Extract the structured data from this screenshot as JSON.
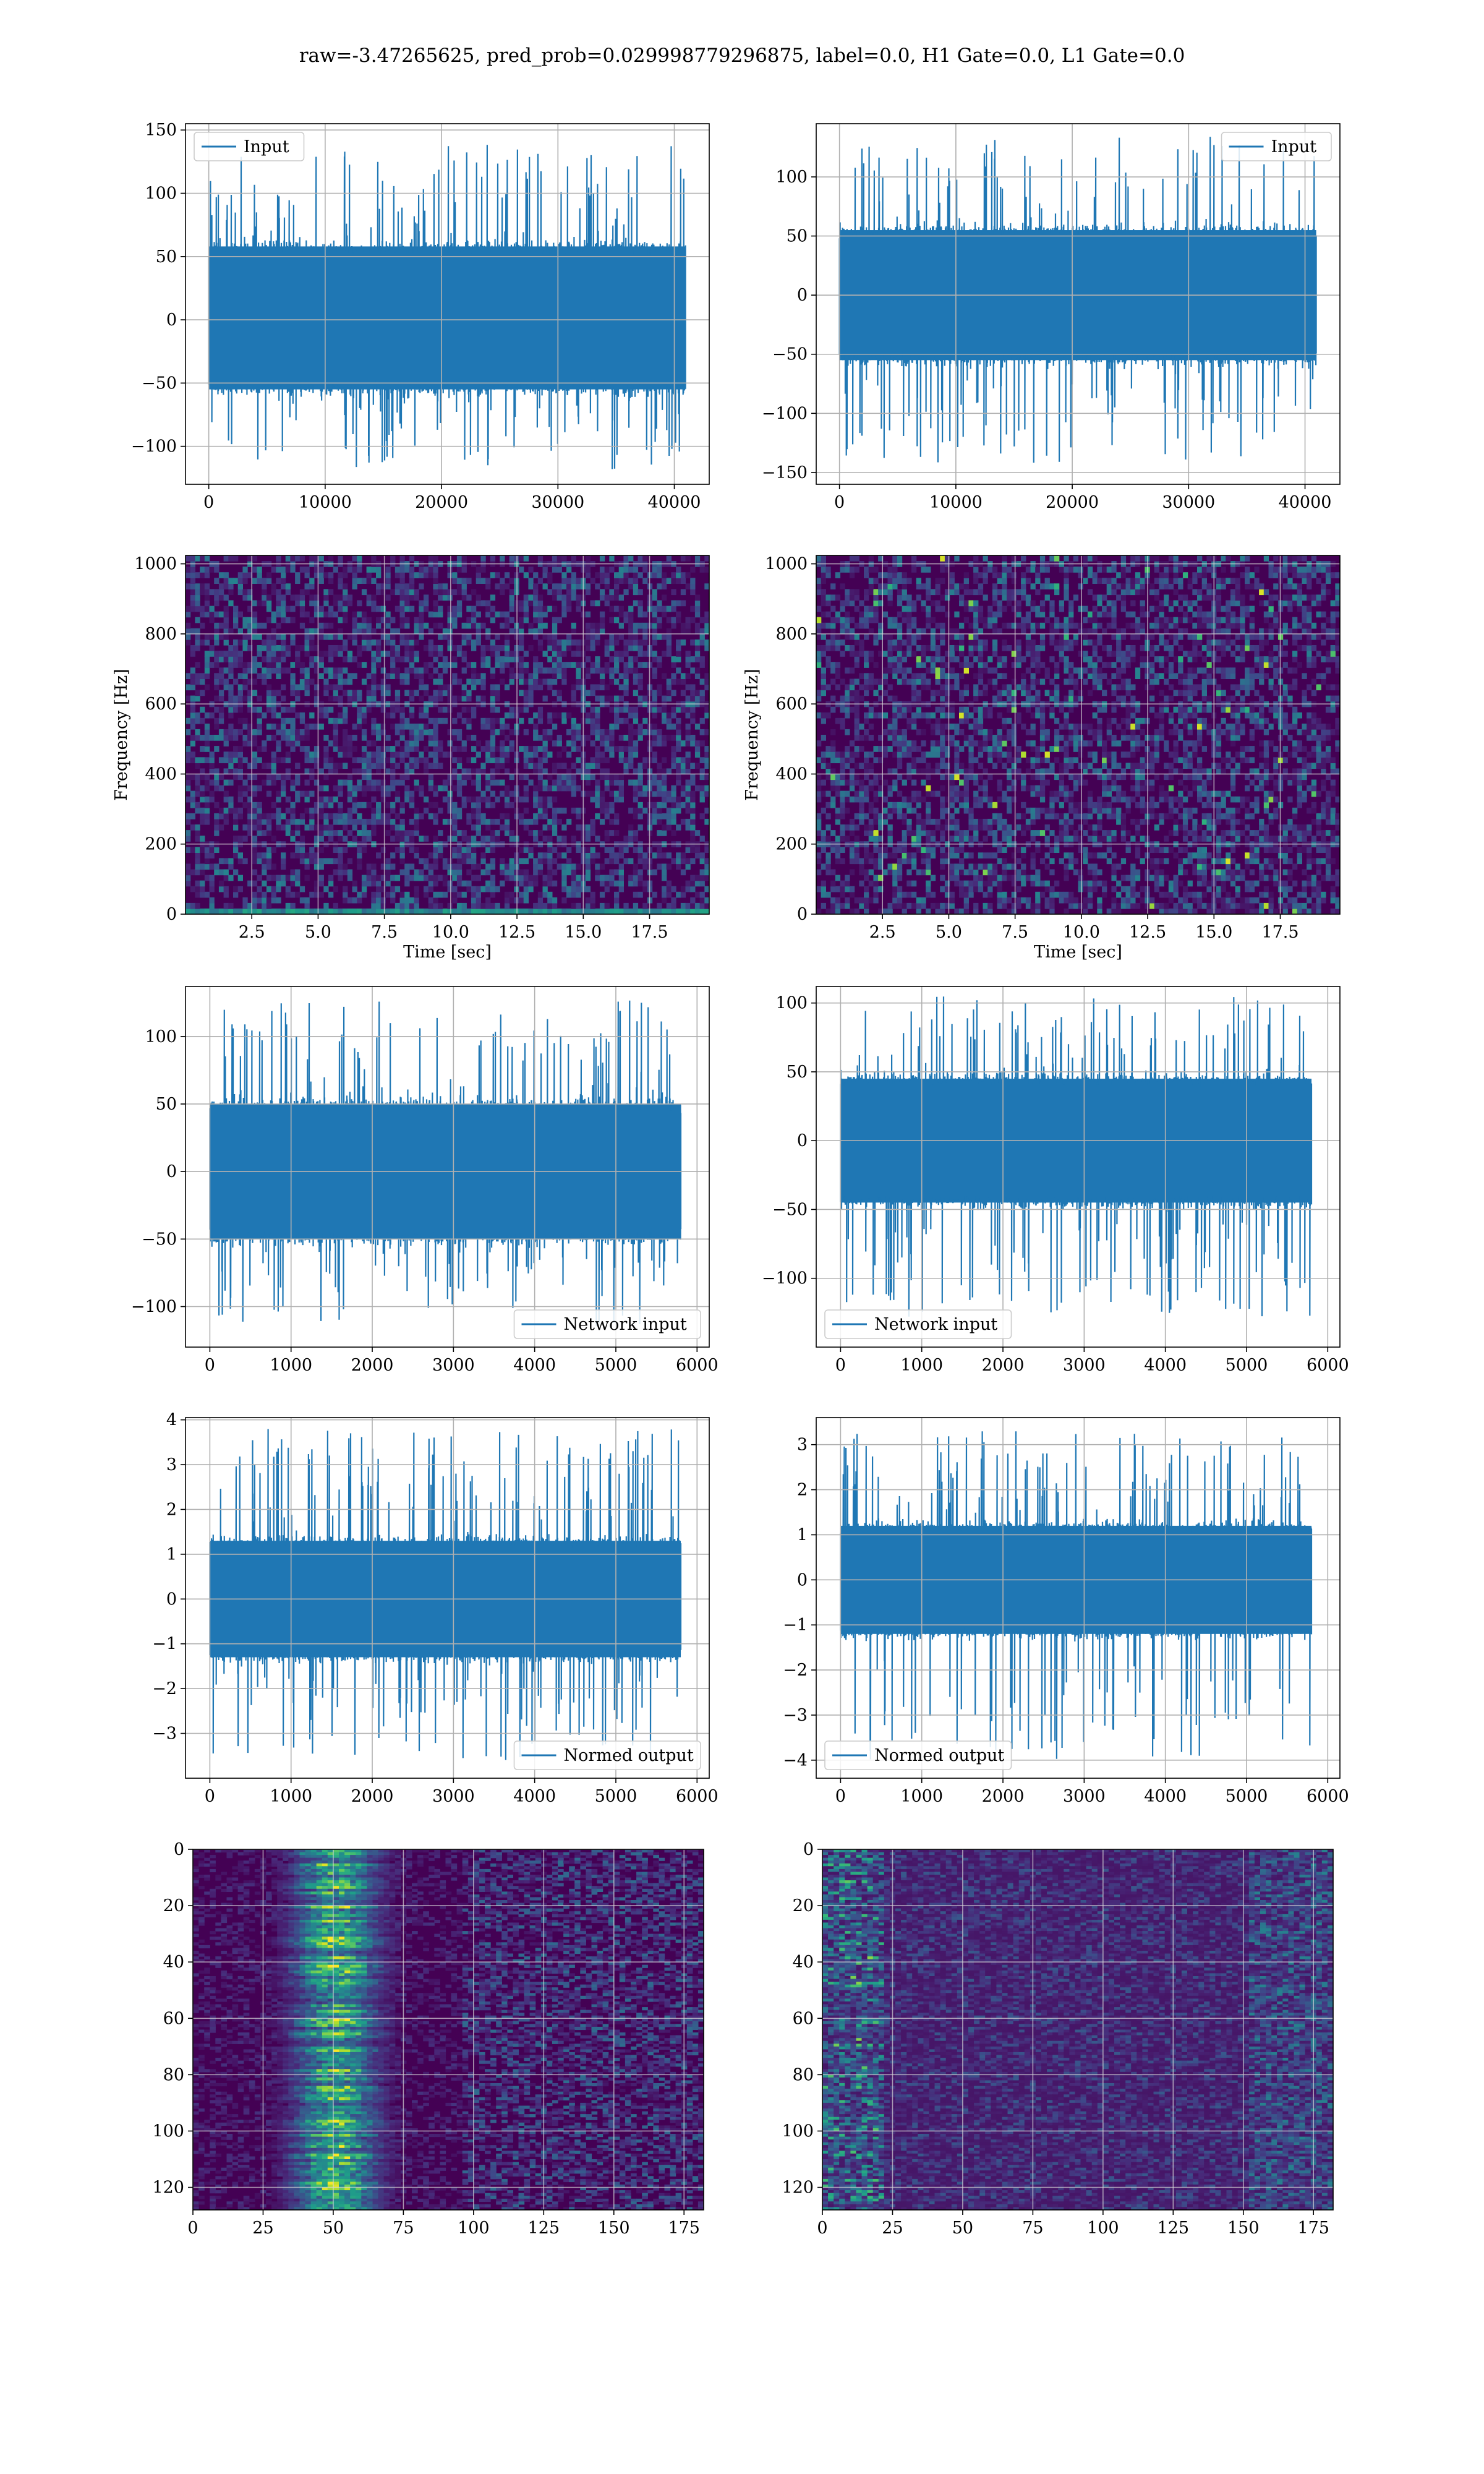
{
  "figure": {
    "suptitle": "raw=-3.47265625, pred_prob=0.029998779296875, label=0.0, H1 Gate=0.0, L1 Gate=0.0",
    "colors": {
      "series": "#1f77b4",
      "grid": "#b0b0b0",
      "viridis_dark": "#440154",
      "viridis_yellow": "#fde725"
    }
  },
  "chart_data": [
    {
      "id": "input_left",
      "type": "line",
      "series": [
        {
          "name": "Input",
          "color": "#1f77b4"
        }
      ],
      "xlim": [
        -2000,
        43000
      ],
      "ylim": [
        -130,
        155
      ],
      "xticks": [
        0,
        10000,
        20000,
        30000,
        40000
      ],
      "xtick_labels": [
        "0",
        "10000",
        "20000",
        "30000",
        "40000"
      ],
      "yticks": [
        -100,
        -50,
        0,
        50,
        100,
        150
      ],
      "ytick_labels": [
        "−100",
        "−50",
        "0",
        "50",
        "100",
        "150"
      ],
      "data_x_range": [
        0,
        40960
      ],
      "band": [
        -55,
        58
      ],
      "envelope": [
        -120,
        140
      ],
      "legend_loc": "upper left",
      "grid": true
    },
    {
      "id": "input_right",
      "type": "line",
      "series": [
        {
          "name": "Input",
          "color": "#1f77b4"
        }
      ],
      "xlim": [
        -2000,
        43000
      ],
      "ylim": [
        -160,
        145
      ],
      "xticks": [
        0,
        10000,
        20000,
        30000,
        40000
      ],
      "xtick_labels": [
        "0",
        "10000",
        "20000",
        "30000",
        "40000"
      ],
      "yticks": [
        -150,
        -100,
        -50,
        0,
        50,
        100
      ],
      "ytick_labels": [
        "−150",
        "−100",
        "−50",
        "0",
        "50",
        "100"
      ],
      "data_x_range": [
        0,
        40960
      ],
      "band": [
        -55,
        55
      ],
      "envelope": [
        -145,
        135
      ],
      "legend_loc": "upper right",
      "grid": true
    },
    {
      "id": "spec_left",
      "type": "heatmap",
      "colormap": "viridis",
      "xlim": [
        0,
        19.75
      ],
      "ylim": [
        0,
        1024
      ],
      "xticks": [
        2.5,
        5.0,
        7.5,
        10.0,
        12.5,
        15.0,
        17.5
      ],
      "xtick_labels": [
        "2.5",
        "5.0",
        "7.5",
        "10.0",
        "12.5",
        "15.0",
        "17.5"
      ],
      "yticks": [
        0,
        200,
        400,
        600,
        800,
        1000
      ],
      "ytick_labels": [
        "0",
        "200",
        "400",
        "600",
        "800",
        "1000"
      ],
      "xlabel": "Time [sec]",
      "ylabel": "Frequency [Hz]",
      "grid": true
    },
    {
      "id": "spec_right",
      "type": "heatmap",
      "colormap": "viridis",
      "xlim": [
        0,
        19.75
      ],
      "ylim": [
        0,
        1024
      ],
      "xticks": [
        2.5,
        5.0,
        7.5,
        10.0,
        12.5,
        15.0,
        17.5
      ],
      "xtick_labels": [
        "2.5",
        "5.0",
        "7.5",
        "10.0",
        "12.5",
        "15.0",
        "17.5"
      ],
      "yticks": [
        0,
        200,
        400,
        600,
        800,
        1000
      ],
      "ytick_labels": [
        "0",
        "200",
        "400",
        "600",
        "800",
        "1000"
      ],
      "xlabel": "Time [sec]",
      "ylabel": "Frequency [Hz]",
      "grid": true
    },
    {
      "id": "net_left",
      "type": "line",
      "series": [
        {
          "name": "Network input",
          "color": "#1f77b4"
        }
      ],
      "xlim": [
        -300,
        6150
      ],
      "ylim": [
        -130,
        137
      ],
      "xticks": [
        0,
        1000,
        2000,
        3000,
        4000,
        5000,
        6000
      ],
      "xtick_labels": [
        "0",
        "1000",
        "2000",
        "3000",
        "4000",
        "5000",
        "6000"
      ],
      "yticks": [
        -100,
        -50,
        0,
        50,
        100
      ],
      "ytick_labels": [
        "−100",
        "−50",
        "0",
        "50",
        "100"
      ],
      "data_x_range": [
        0,
        5800
      ],
      "band": [
        -50,
        50
      ],
      "envelope": [
        -115,
        127
      ],
      "legend_loc": "lower right",
      "grid": true
    },
    {
      "id": "net_right",
      "type": "line",
      "series": [
        {
          "name": "Network input",
          "color": "#1f77b4"
        }
      ],
      "xlim": [
        -300,
        6150
      ],
      "ylim": [
        -150,
        112
      ],
      "xticks": [
        0,
        1000,
        2000,
        3000,
        4000,
        5000,
        6000
      ],
      "xtick_labels": [
        "0",
        "1000",
        "2000",
        "3000",
        "4000",
        "5000",
        "6000"
      ],
      "yticks": [
        -100,
        -50,
        0,
        50,
        100
      ],
      "ytick_labels": [
        "−100",
        "−50",
        "0",
        "50",
        "100"
      ],
      "data_x_range": [
        0,
        5800
      ],
      "band": [
        -45,
        45
      ],
      "envelope": [
        -128,
        105
      ],
      "legend_loc": "lower left",
      "grid": true
    },
    {
      "id": "norm_left",
      "type": "line",
      "series": [
        {
          "name": "Normed output",
          "color": "#1f77b4"
        }
      ],
      "xlim": [
        -300,
        6150
      ],
      "ylim": [
        -4.0,
        4.05
      ],
      "xticks": [
        0,
        1000,
        2000,
        3000,
        4000,
        5000,
        6000
      ],
      "xtick_labels": [
        "0",
        "1000",
        "2000",
        "3000",
        "4000",
        "5000",
        "6000"
      ],
      "yticks": [
        -3,
        -2,
        -1,
        0,
        1,
        2,
        3,
        4
      ],
      "ytick_labels": [
        "−3",
        "−2",
        "−1",
        "0",
        "1",
        "2",
        "3",
        "4"
      ],
      "data_x_range": [
        0,
        5800
      ],
      "band": [
        -1.3,
        1.3
      ],
      "envelope": [
        -3.6,
        3.8
      ],
      "legend_loc": "lower right",
      "grid": true
    },
    {
      "id": "norm_right",
      "type": "line",
      "series": [
        {
          "name": "Normed output",
          "color": "#1f77b4"
        }
      ],
      "xlim": [
        -300,
        6150
      ],
      "ylim": [
        -4.4,
        3.6
      ],
      "xticks": [
        0,
        1000,
        2000,
        3000,
        4000,
        5000,
        6000
      ],
      "xtick_labels": [
        "0",
        "1000",
        "2000",
        "3000",
        "4000",
        "5000",
        "6000"
      ],
      "yticks": [
        -4,
        -3,
        -2,
        -1,
        0,
        1,
        2,
        3
      ],
      "ytick_labels": [
        "−4",
        "−3",
        "−2",
        "−1",
        "0",
        "1",
        "2",
        "3"
      ],
      "data_x_range": [
        0,
        5800
      ],
      "band": [
        -1.2,
        1.2
      ],
      "envelope": [
        -4.0,
        3.3
      ],
      "legend_loc": "lower left",
      "grid": true
    },
    {
      "id": "feat_left",
      "type": "heatmap",
      "colormap": "viridis",
      "xlim": [
        0,
        182
      ],
      "ylim": [
        128,
        0
      ],
      "xticks": [
        0,
        25,
        50,
        75,
        100,
        125,
        150,
        175
      ],
      "xtick_labels": [
        "0",
        "25",
        "50",
        "75",
        "100",
        "125",
        "150",
        "175"
      ],
      "yticks": [
        0,
        20,
        40,
        60,
        80,
        100,
        120
      ],
      "ytick_labels": [
        "0",
        "20",
        "40",
        "60",
        "80",
        "100",
        "120"
      ],
      "grid": true
    },
    {
      "id": "feat_right",
      "type": "heatmap",
      "colormap": "viridis",
      "xlim": [
        0,
        182
      ],
      "ylim": [
        128,
        0
      ],
      "xticks": [
        0,
        25,
        50,
        75,
        100,
        125,
        150,
        175
      ],
      "xtick_labels": [
        "0",
        "25",
        "50",
        "75",
        "100",
        "125",
        "150",
        "175"
      ],
      "yticks": [
        0,
        20,
        40,
        60,
        80,
        100,
        120
      ],
      "ytick_labels": [
        "0",
        "20",
        "40",
        "60",
        "80",
        "100",
        "120"
      ],
      "grid": true
    }
  ]
}
